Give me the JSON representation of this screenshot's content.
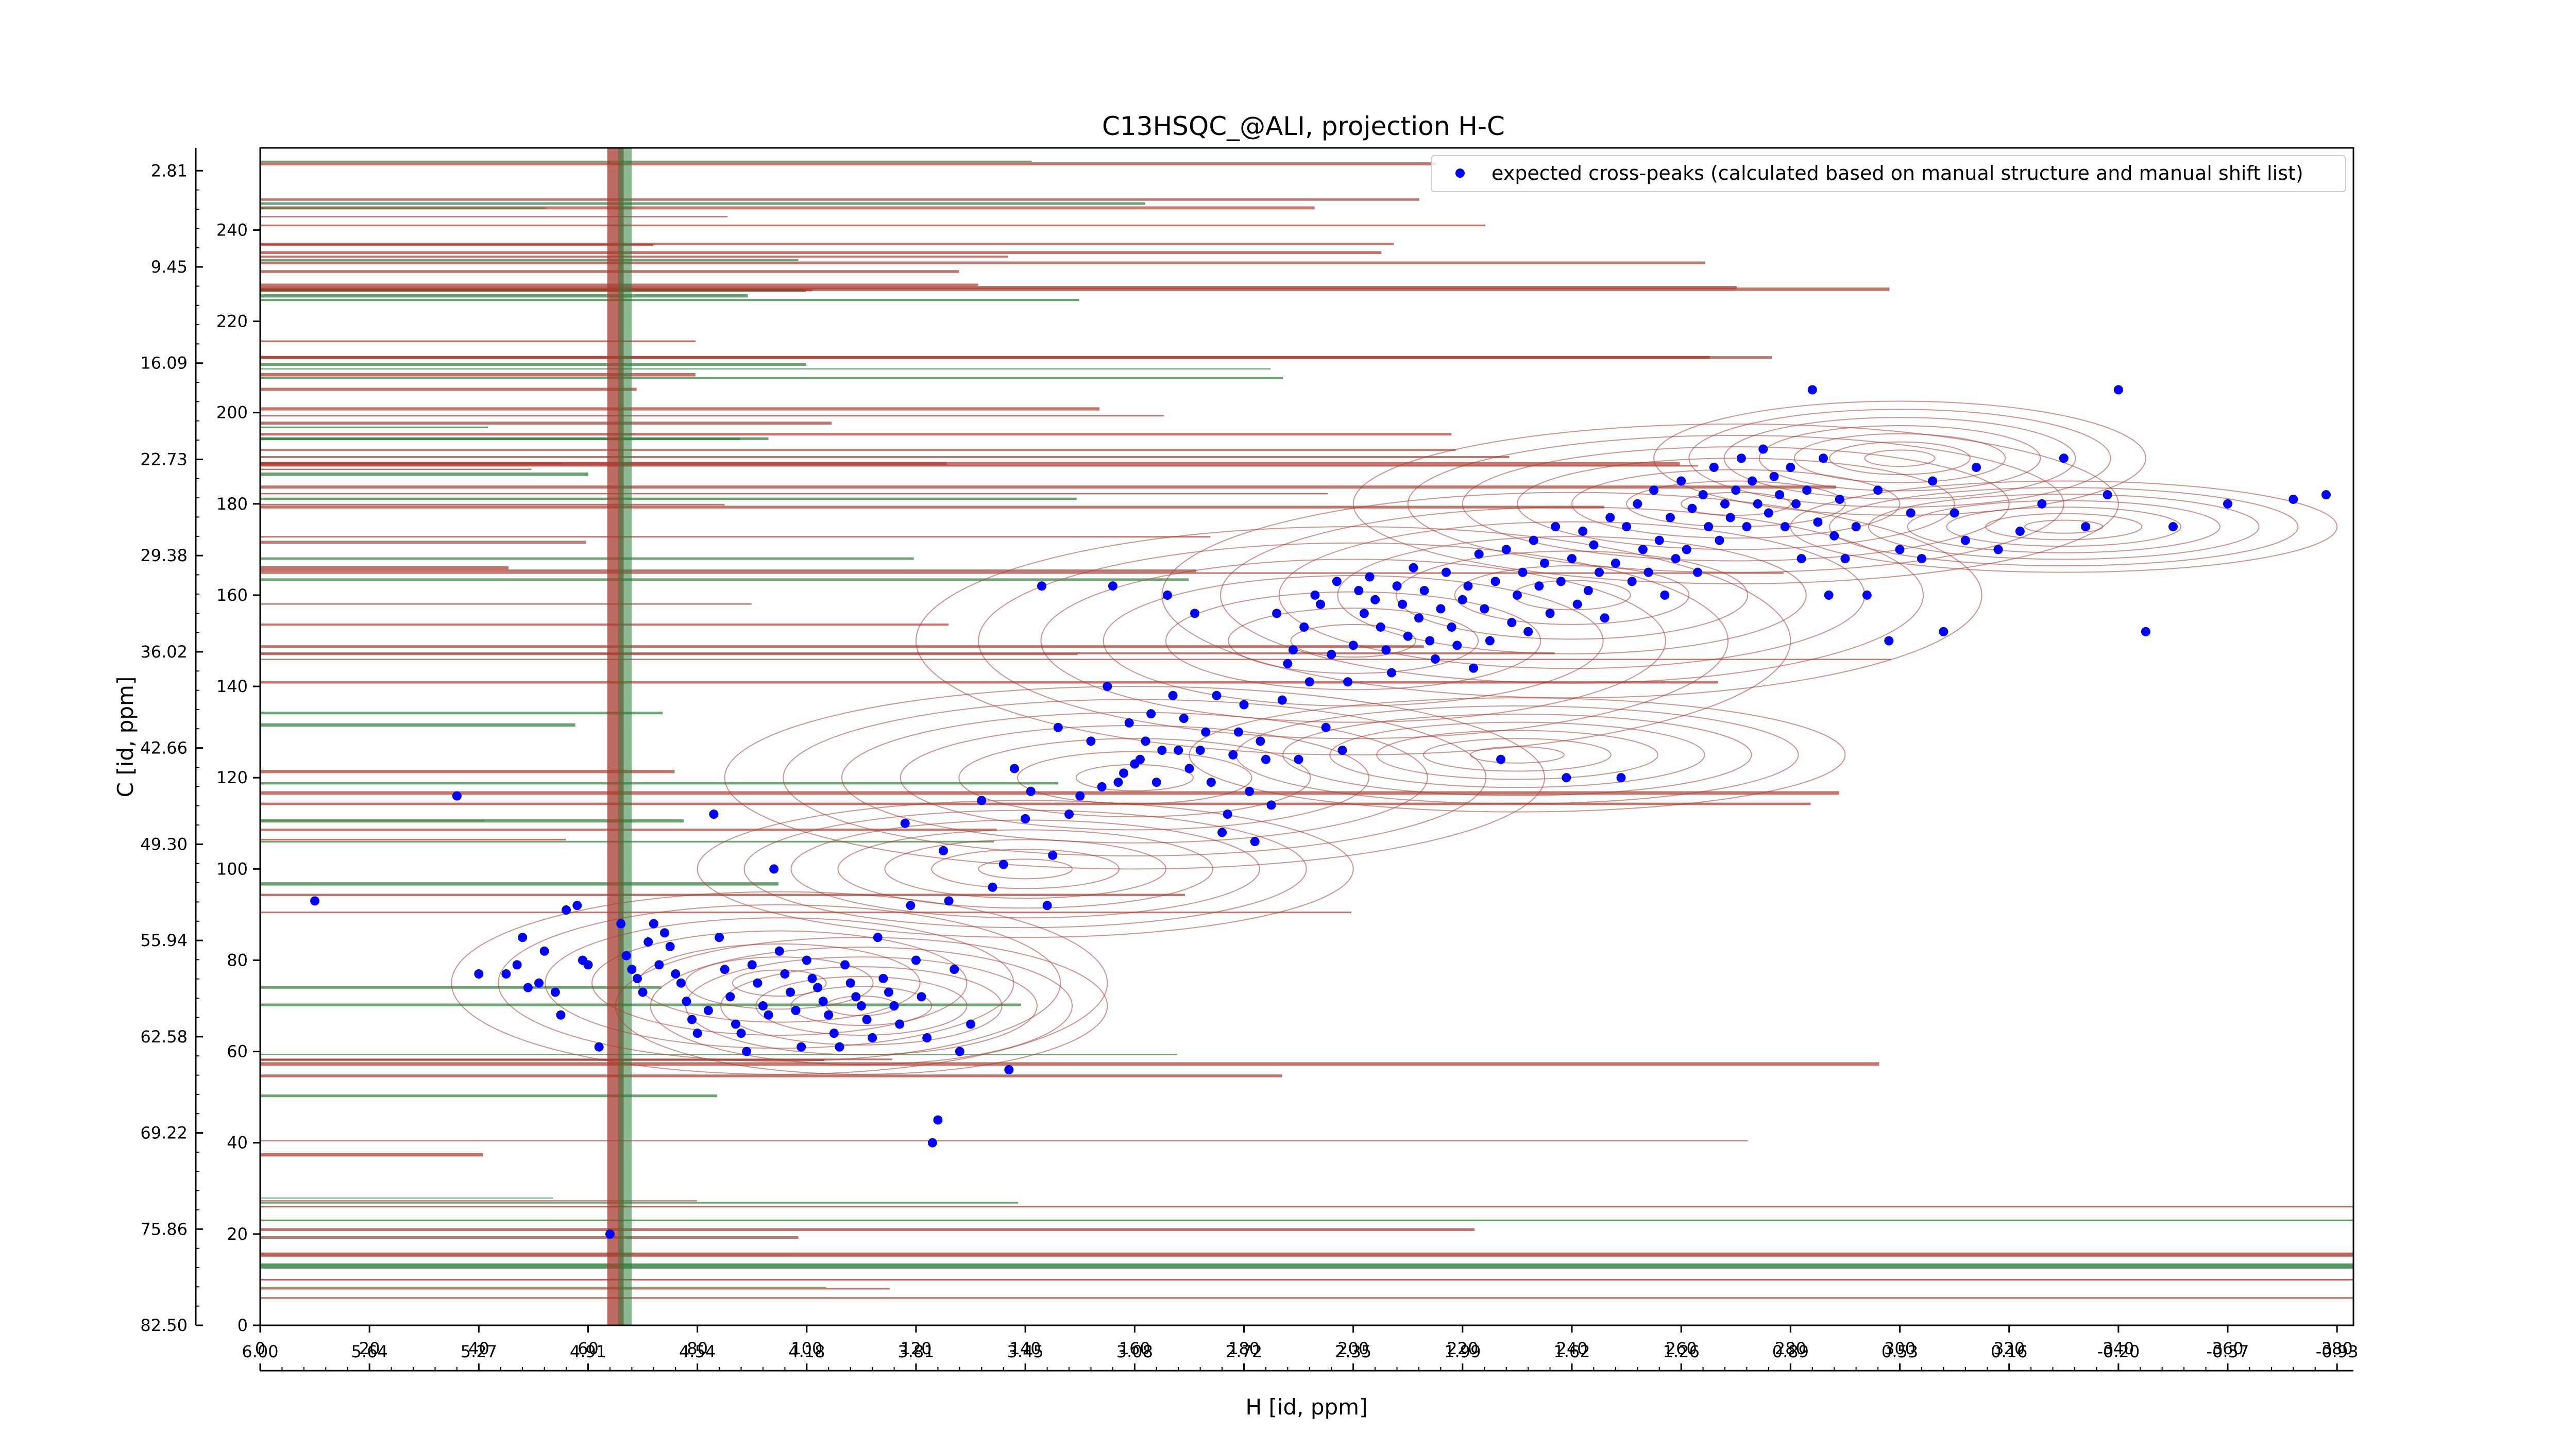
{
  "chart_data": {
    "type": "scatter",
    "title": "C13HSQC_@ALI, projection H-C",
    "xlabel": "H [id, ppm]",
    "ylabel": "C [id, ppm]",
    "x_range": [
      0,
      383
    ],
    "y_range": [
      0,
      258
    ],
    "x_ticks": [
      0,
      20,
      40,
      60,
      80,
      100,
      120,
      140,
      160,
      180,
      200,
      220,
      240,
      260,
      280,
      300,
      320,
      340,
      360,
      380
    ],
    "y_ticks": [
      0,
      20,
      40,
      60,
      80,
      100,
      120,
      140,
      160,
      180,
      200,
      220,
      240
    ],
    "x_secondary_ticks": [
      "6.00",
      "5.64",
      "5.27",
      "4.91",
      "4.54",
      "4.18",
      "3.81",
      "3.45",
      "3.08",
      "2.72",
      "2.35",
      "1.99",
      "1.62",
      "1.26",
      "0.89",
      "0.53",
      "0.16",
      "-0.20",
      "-0.57",
      "-0.93"
    ],
    "y_secondary_ticks": [
      "82.50",
      "75.86",
      "69.22",
      "62.58",
      "55.94",
      "49.30",
      "42.66",
      "36.02",
      "29.38",
      "22.73",
      "16.09",
      "9.45",
      "2.81"
    ],
    "legend": {
      "placement": "top-right",
      "entries": [
        "expected cross-peaks (calculated based on manual structure and manual shift list)"
      ]
    },
    "colors": {
      "points": "#0000ff",
      "positive_contours": "#a63b2f",
      "negative_contours": "#2e7d3a",
      "axes": "#000000"
    },
    "series": [
      {
        "name": "expected cross-peaks (calculated based on manual structure and manual shift list)",
        "points": [
          [
            10,
            93
          ],
          [
            36,
            116
          ],
          [
            40,
            77
          ],
          [
            45,
            77
          ],
          [
            47,
            79
          ],
          [
            48,
            85
          ],
          [
            49,
            74
          ],
          [
            51,
            75
          ],
          [
            52,
            82
          ],
          [
            54,
            73
          ],
          [
            55,
            68
          ],
          [
            56,
            91
          ],
          [
            58,
            92
          ],
          [
            59,
            80
          ],
          [
            60,
            79
          ],
          [
            62,
            61
          ],
          [
            64,
            20
          ],
          [
            66,
            88
          ],
          [
            67,
            81
          ],
          [
            68,
            78
          ],
          [
            69,
            76
          ],
          [
            70,
            73
          ],
          [
            71,
            84
          ],
          [
            72,
            88
          ],
          [
            73,
            79
          ],
          [
            74,
            86
          ],
          [
            75,
            83
          ],
          [
            76,
            77
          ],
          [
            77,
            75
          ],
          [
            78,
            71
          ],
          [
            79,
            67
          ],
          [
            80,
            64
          ],
          [
            82,
            69
          ],
          [
            83,
            112
          ],
          [
            84,
            85
          ],
          [
            85,
            78
          ],
          [
            86,
            72
          ],
          [
            87,
            66
          ],
          [
            88,
            64
          ],
          [
            89,
            60
          ],
          [
            90,
            79
          ],
          [
            91,
            75
          ],
          [
            92,
            70
          ],
          [
            93,
            68
          ],
          [
            94,
            100
          ],
          [
            95,
            82
          ],
          [
            96,
            77
          ],
          [
            97,
            73
          ],
          [
            98,
            69
          ],
          [
            99,
            61
          ],
          [
            100,
            80
          ],
          [
            101,
            76
          ],
          [
            102,
            74
          ],
          [
            103,
            71
          ],
          [
            104,
            68
          ],
          [
            105,
            64
          ],
          [
            106,
            61
          ],
          [
            107,
            79
          ],
          [
            108,
            75
          ],
          [
            109,
            72
          ],
          [
            110,
            70
          ],
          [
            111,
            67
          ],
          [
            112,
            63
          ],
          [
            113,
            85
          ],
          [
            114,
            76
          ],
          [
            115,
            73
          ],
          [
            116,
            70
          ],
          [
            117,
            66
          ],
          [
            118,
            110
          ],
          [
            119,
            92
          ],
          [
            120,
            80
          ],
          [
            121,
            72
          ],
          [
            122,
            63
          ],
          [
            123,
            40
          ],
          [
            124,
            45
          ],
          [
            125,
            104
          ],
          [
            126,
            93
          ],
          [
            127,
            78
          ],
          [
            128,
            60
          ],
          [
            130,
            66
          ],
          [
            132,
            115
          ],
          [
            134,
            96
          ],
          [
            136,
            101
          ],
          [
            137,
            56
          ],
          [
            138,
            122
          ],
          [
            140,
            111
          ],
          [
            141,
            117
          ],
          [
            143,
            162
          ],
          [
            144,
            92
          ],
          [
            145,
            103
          ],
          [
            146,
            131
          ],
          [
            148,
            112
          ],
          [
            150,
            116
          ],
          [
            152,
            128
          ],
          [
            154,
            118
          ],
          [
            155,
            140
          ],
          [
            156,
            162
          ],
          [
            157,
            119
          ],
          [
            158,
            121
          ],
          [
            159,
            132
          ],
          [
            160,
            123
          ],
          [
            161,
            124
          ],
          [
            162,
            128
          ],
          [
            163,
            134
          ],
          [
            164,
            119
          ],
          [
            165,
            126
          ],
          [
            166,
            160
          ],
          [
            167,
            138
          ],
          [
            168,
            126
          ],
          [
            169,
            133
          ],
          [
            170,
            122
          ],
          [
            171,
            156
          ],
          [
            172,
            126
          ],
          [
            173,
            130
          ],
          [
            174,
            119
          ],
          [
            175,
            138
          ],
          [
            176,
            108
          ],
          [
            177,
            112
          ],
          [
            178,
            125
          ],
          [
            179,
            130
          ],
          [
            180,
            136
          ],
          [
            181,
            117
          ],
          [
            182,
            106
          ],
          [
            183,
            128
          ],
          [
            184,
            124
          ],
          [
            185,
            114
          ],
          [
            186,
            156
          ],
          [
            187,
            137
          ],
          [
            188,
            145
          ],
          [
            189,
            148
          ],
          [
            190,
            124
          ],
          [
            191,
            153
          ],
          [
            192,
            141
          ],
          [
            193,
            160
          ],
          [
            194,
            158
          ],
          [
            195,
            131
          ],
          [
            196,
            147
          ],
          [
            197,
            163
          ],
          [
            198,
            126
          ],
          [
            199,
            141
          ],
          [
            200,
            149
          ],
          [
            201,
            161
          ],
          [
            202,
            156
          ],
          [
            203,
            164
          ],
          [
            204,
            159
          ],
          [
            205,
            153
          ],
          [
            206,
            148
          ],
          [
            207,
            143
          ],
          [
            208,
            162
          ],
          [
            209,
            158
          ],
          [
            210,
            151
          ],
          [
            211,
            166
          ],
          [
            212,
            155
          ],
          [
            213,
            161
          ],
          [
            214,
            150
          ],
          [
            215,
            146
          ],
          [
            216,
            157
          ],
          [
            217,
            165
          ],
          [
            218,
            153
          ],
          [
            219,
            149
          ],
          [
            220,
            159
          ],
          [
            221,
            162
          ],
          [
            222,
            144
          ],
          [
            223,
            169
          ],
          [
            224,
            157
          ],
          [
            225,
            150
          ],
          [
            226,
            163
          ],
          [
            227,
            124
          ],
          [
            228,
            170
          ],
          [
            229,
            154
          ],
          [
            230,
            160
          ],
          [
            231,
            165
          ],
          [
            232,
            152
          ],
          [
            233,
            172
          ],
          [
            234,
            162
          ],
          [
            235,
            167
          ],
          [
            236,
            156
          ],
          [
            237,
            175
          ],
          [
            238,
            163
          ],
          [
            239,
            120
          ],
          [
            240,
            168
          ],
          [
            241,
            158
          ],
          [
            242,
            174
          ],
          [
            243,
            161
          ],
          [
            244,
            171
          ],
          [
            245,
            165
          ],
          [
            246,
            155
          ],
          [
            247,
            177
          ],
          [
            248,
            167
          ],
          [
            249,
            120
          ],
          [
            250,
            175
          ],
          [
            251,
            163
          ],
          [
            252,
            180
          ],
          [
            253,
            170
          ],
          [
            254,
            165
          ],
          [
            255,
            183
          ],
          [
            256,
            172
          ],
          [
            257,
            160
          ],
          [
            258,
            177
          ],
          [
            259,
            168
          ],
          [
            260,
            185
          ],
          [
            261,
            170
          ],
          [
            262,
            179
          ],
          [
            263,
            165
          ],
          [
            264,
            182
          ],
          [
            265,
            175
          ],
          [
            266,
            188
          ],
          [
            267,
            172
          ],
          [
            268,
            180
          ],
          [
            269,
            177
          ],
          [
            270,
            183
          ],
          [
            271,
            190
          ],
          [
            272,
            175
          ],
          [
            273,
            185
          ],
          [
            274,
            180
          ],
          [
            275,
            192
          ],
          [
            276,
            178
          ],
          [
            277,
            186
          ],
          [
            278,
            182
          ],
          [
            279,
            175
          ],
          [
            280,
            188
          ],
          [
            281,
            180
          ],
          [
            282,
            168
          ],
          [
            283,
            183
          ],
          [
            284,
            205
          ],
          [
            285,
            176
          ],
          [
            286,
            190
          ],
          [
            287,
            160
          ],
          [
            288,
            173
          ],
          [
            289,
            181
          ],
          [
            290,
            168
          ],
          [
            292,
            175
          ],
          [
            294,
            160
          ],
          [
            296,
            183
          ],
          [
            298,
            150
          ],
          [
            300,
            170
          ],
          [
            302,
            178
          ],
          [
            304,
            168
          ],
          [
            306,
            185
          ],
          [
            308,
            152
          ],
          [
            310,
            178
          ],
          [
            312,
            172
          ],
          [
            314,
            188
          ],
          [
            318,
            170
          ],
          [
            322,
            174
          ],
          [
            326,
            180
          ],
          [
            330,
            190
          ],
          [
            334,
            175
          ],
          [
            338,
            182
          ],
          [
            340,
            205
          ],
          [
            345,
            152
          ],
          [
            350,
            175
          ],
          [
            360,
            180
          ],
          [
            372,
            181
          ],
          [
            378,
            182
          ]
        ]
      }
    ]
  }
}
